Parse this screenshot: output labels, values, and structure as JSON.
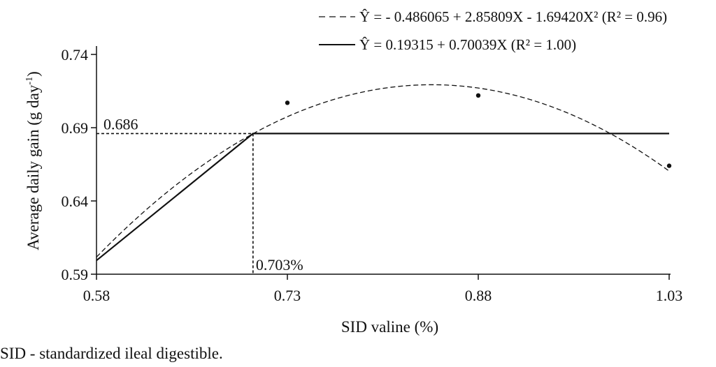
{
  "chart_data": {
    "type": "line",
    "xlabel": "SID valine (%)",
    "ylabel": "Average daily gain (g day",
    "ylabel_sup": "-1",
    "ylabel_close": ")",
    "xlim": [
      0.58,
      1.03
    ],
    "ylim": [
      0.59,
      0.74
    ],
    "x_ticks": [
      "0.58",
      "0.73",
      "0.88",
      "1.03"
    ],
    "y_ticks": [
      "0.59",
      "0.64",
      "0.69",
      "0.74"
    ],
    "x_tick_values": [
      0.58,
      0.73,
      0.88,
      1.03
    ],
    "y_tick_values": [
      0.59,
      0.64,
      0.69,
      0.74
    ],
    "grid": false,
    "legend_position": "top-right",
    "legend": [
      {
        "style": "dashed",
        "equation": "Ŷ = - 0.486065 + 2.85809X - 1.69420X² (R² = 0.96)"
      },
      {
        "style": "solid",
        "equation": "Ŷ = 0.19315 + 0.70039X (R² = 1.00)"
      }
    ],
    "observed_points": [
      {
        "x": 0.73,
        "y": 0.707
      },
      {
        "x": 0.88,
        "y": 0.712
      },
      {
        "x": 1.03,
        "y": 0.664
      }
    ],
    "quadratic": {
      "a": -0.486065,
      "b": 2.85809,
      "c": -1.6942,
      "x_start": 0.58,
      "x_end": 1.03
    },
    "linear_plateau": {
      "intercept": 0.19315,
      "slope": 0.70039,
      "breakpoint_x": 0.703,
      "plateau_y": 0.686,
      "x_start": 0.58,
      "x_end": 1.03
    },
    "annotations": {
      "plateau_label": "0.686",
      "breakpoint_label": "0.703%"
    }
  },
  "footnote": "SID - standardized ileal digestible."
}
